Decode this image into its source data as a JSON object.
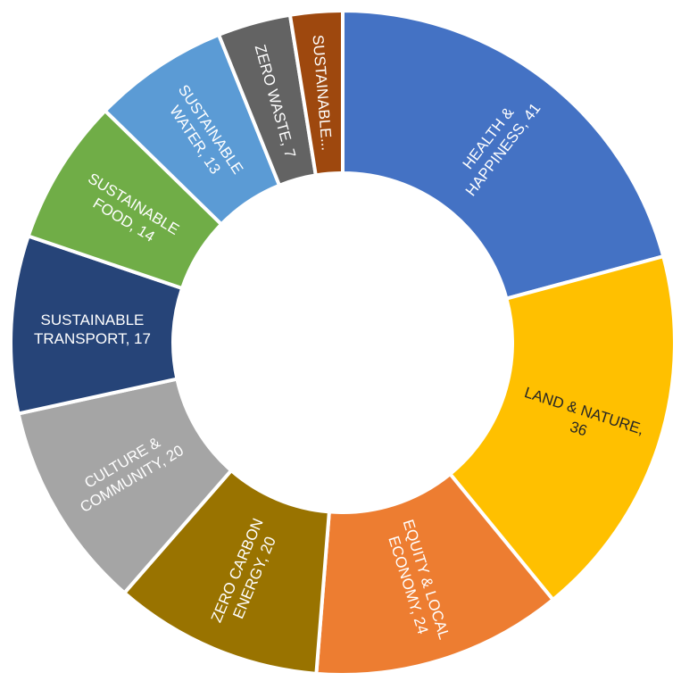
{
  "chart_data": {
    "type": "pie",
    "variant": "donut",
    "title": "",
    "categories": [
      "HEALTH & HAPPINESS",
      "LAND & NATURE",
      "EQUITY & LOCAL ECONOMY",
      "ZERO CARBON ENERGY",
      "CULTURE & COMMUNITY",
      "SUSTAINABLE TRANSPORT",
      "SUSTAINABLE FOOD",
      "SUSTAINABLE WATER",
      "ZERO WASTE",
      "SUSTAINABLE..."
    ],
    "values": [
      41,
      36,
      24,
      20,
      20,
      17,
      14,
      13,
      7,
      5
    ],
    "colors": [
      "#4472C4",
      "#FFC000",
      "#ED7D31",
      "#997300",
      "#A5A5A5",
      "#264478",
      "#70AD47",
      "#5B9BD5",
      "#636363",
      "#9E480E"
    ],
    "label_colors": [
      "#ffffff",
      "#262626",
      "#ffffff",
      "#ffffff",
      "#ffffff",
      "#ffffff",
      "#ffffff",
      "#ffffff",
      "#ffffff",
      "#ffffff"
    ],
    "labels": [
      {
        "lines": [
          "HEALTH &",
          "HAPPINESS, 41"
        ],
        "orientation": "radial"
      },
      {
        "lines": [
          "LAND & NATURE,",
          "36"
        ],
        "orientation": "radial"
      },
      {
        "lines": [
          "EQUITY & LOCAL",
          "ECONOMY, 24"
        ],
        "orientation": "radial"
      },
      {
        "lines": [
          "ZERO CARBON",
          "ENERGY, 20"
        ],
        "orientation": "radial"
      },
      {
        "lines": [
          "CULTURE &",
          "COMMUNITY, 20"
        ],
        "orientation": "radial"
      },
      {
        "lines": [
          "SUSTAINABLE",
          "TRANSPORT, 17"
        ],
        "orientation": "horizontal"
      },
      {
        "lines": [
          "SUSTAINABLE",
          "FOOD, 14"
        ],
        "orientation": "radial"
      },
      {
        "lines": [
          "SUSTAINABLE",
          "WATER, 13"
        ],
        "orientation": "radial"
      },
      {
        "lines": [
          "ZERO WASTE, 7"
        ],
        "orientation": "radial"
      },
      {
        "lines": [
          "SUSTAINABLE..."
        ],
        "orientation": "radial"
      }
    ]
  }
}
